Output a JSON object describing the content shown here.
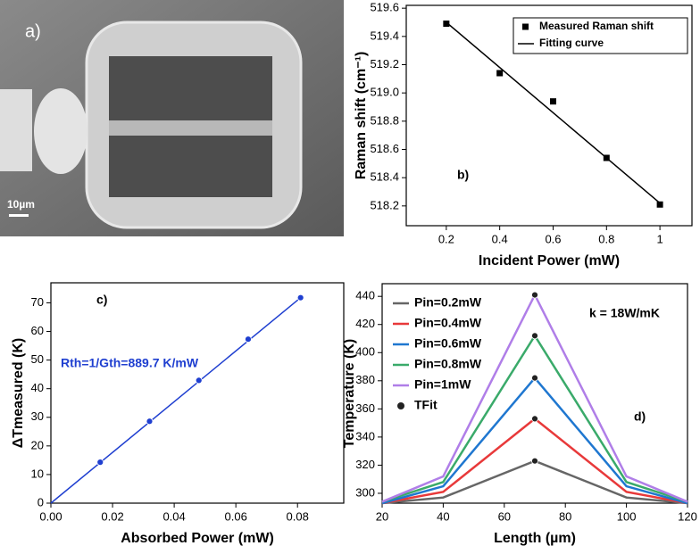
{
  "image_panel": {
    "label": "a)",
    "scale_bar": "10µm"
  },
  "chart_data": [
    {
      "type": "scatter",
      "xlabel": "Incident Power (mW)",
      "ylabel": "Raman shift (cm⁻¹)",
      "annotations": [
        "b)"
      ],
      "legend": "upper right",
      "xlim": [
        0.05,
        1.12
      ],
      "ylim": [
        518.06,
        519.62
      ],
      "xticks": [
        0.2,
        0.4,
        0.6,
        0.8,
        1.0
      ],
      "yticks": [
        518.2,
        518.4,
        518.6,
        518.8,
        {
          "value": 519,
          "label": "519.0"
        },
        519.2,
        519.4,
        519.6
      ],
      "series": [
        {
          "name": "Measured Raman shift",
          "color": "#000000",
          "marker": "square",
          "x": [
            0.2,
            0.4,
            0.6,
            0.8,
            1.0
          ],
          "values": [
            519.49,
            519.14,
            518.94,
            518.54,
            518.21
          ]
        },
        {
          "name": "Fitting curve",
          "color": "#000000",
          "marker": "none",
          "x": [
            0.2,
            1.0
          ],
          "values": [
            519.5,
            518.22
          ]
        }
      ]
    },
    {
      "type": "scatter",
      "xlabel": "Absorbed Power (mW)",
      "ylabel": "ΔTmeasured (K)",
      "annotations": [
        "c)",
        "Rth=1/Gth=889.7 K/mW"
      ],
      "xlim": [
        0,
        0.095
      ],
      "ylim": [
        0,
        77
      ],
      "xticks": [
        {
          "value": 0,
          "label": "0.00"
        },
        {
          "value": 0.02,
          "label": "0.02"
        },
        {
          "value": 0.04,
          "label": "0.04"
        },
        {
          "value": 0.06,
          "label": "0.06"
        },
        {
          "value": 0.08,
          "label": "0.08"
        }
      ],
      "yticks": [
        0,
        10,
        20,
        30,
        40,
        50,
        60,
        70
      ],
      "series": [
        {
          "color": "#1f3fd0",
          "marker": "circle",
          "x": [
            0.016,
            0.032,
            0.048,
            0.064,
            0.081
          ],
          "values": [
            14.3,
            28.6,
            42.9,
            57.3,
            71.8
          ]
        },
        {
          "color": "#1f3fd0",
          "marker": "none",
          "x": [
            0,
            0.081
          ],
          "values": [
            0,
            71.8
          ]
        }
      ]
    },
    {
      "type": "line",
      "xlabel": "Length (µm)",
      "ylabel": "Temperature (K)",
      "annotations": [
        "k = 18W/mK",
        "d)"
      ],
      "legend": "upper left",
      "xlim": [
        20,
        120
      ],
      "ylim": [
        293,
        449
      ],
      "xticks": [
        20,
        40,
        60,
        80,
        100,
        120
      ],
      "yticks": [
        300,
        320,
        340,
        360,
        380,
        400,
        420,
        440
      ],
      "x": [
        20,
        40,
        70,
        100,
        120
      ],
      "series": [
        {
          "name": "Pin=0.2mW",
          "color": "#666666",
          "marker": "none",
          "values": [
            293,
            297,
            323,
            297,
            293
          ]
        },
        {
          "name": "Pin=0.4mW",
          "color": "#e8393a",
          "marker": "none",
          "values": [
            293,
            301,
            353,
            301,
            293
          ]
        },
        {
          "name": "Pin=0.6mW",
          "color": "#1f77d0",
          "marker": "none",
          "values": [
            293,
            305,
            382,
            305,
            293
          ]
        },
        {
          "name": "Pin=0.8mW",
          "color": "#3aaa6a",
          "marker": "none",
          "values": [
            294,
            308,
            412,
            308,
            294
          ]
        },
        {
          "name": "Pin=1mW",
          "color": "#b07ee8",
          "marker": "none",
          "values": [
            294,
            312,
            441,
            312,
            294
          ]
        },
        {
          "name": "TFit",
          "color": "#222222",
          "marker": "circle",
          "x": [
            70,
            70,
            70,
            70,
            70
          ],
          "values": [
            323,
            353,
            382,
            412,
            441
          ]
        }
      ]
    }
  ]
}
